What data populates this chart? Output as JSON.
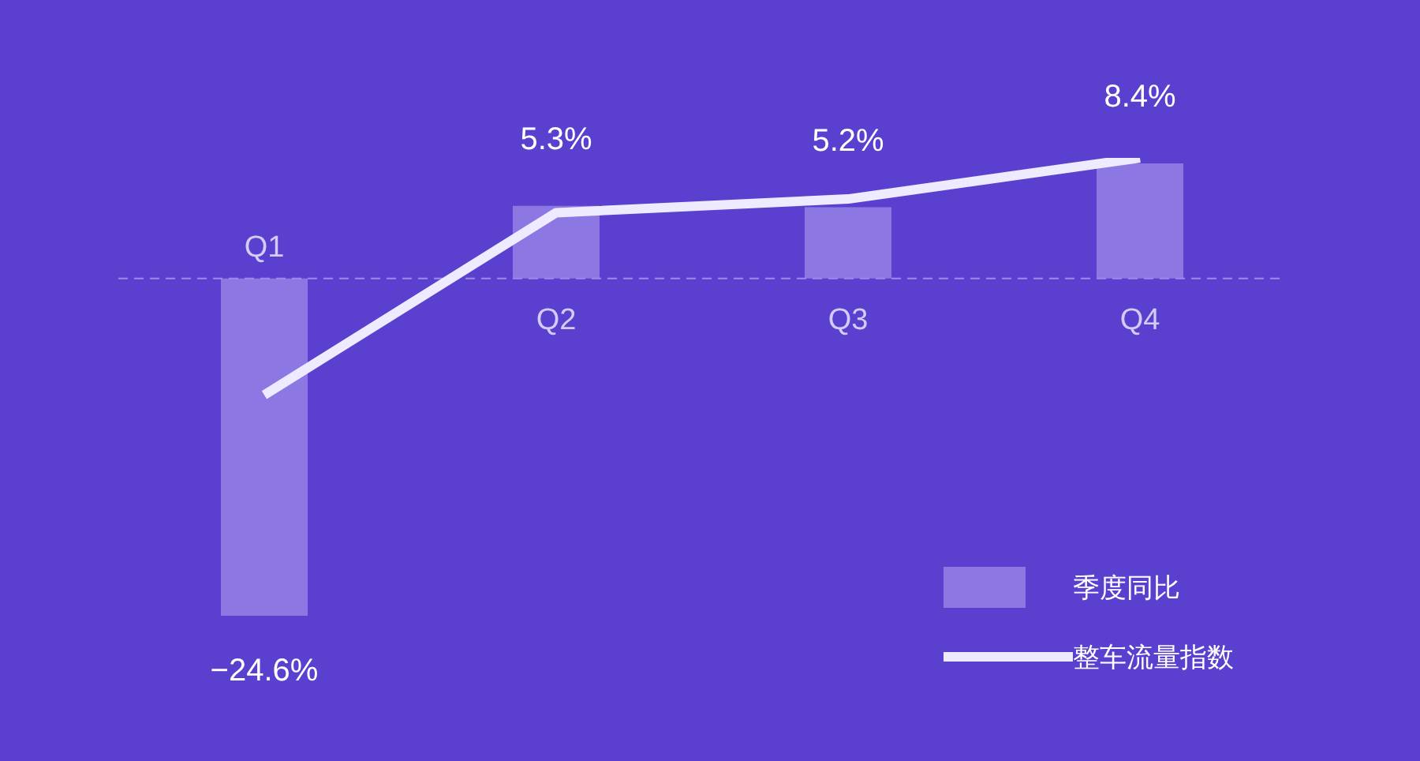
{
  "chart_data": {
    "type": "bar",
    "categories": [
      "Q1",
      "Q2",
      "Q3",
      "Q4"
    ],
    "series": [
      {
        "name": "季度同比",
        "color": "#8c77e3",
        "values": [
          -24.6,
          5.3,
          5.2,
          8.4
        ],
        "value_labels": [
          "−24.6%",
          "5.3%",
          "5.2%",
          "8.4%"
        ]
      },
      {
        "name": "整车流量指数",
        "type": "line",
        "color": "#eeeaff",
        "values": [
          -8.5,
          4.8,
          5.8,
          8.8
        ]
      }
    ],
    "legend": "bottom right",
    "tick_labels": "x",
    "marker": "none",
    "line_style": "solid",
    "ref_lines": [
      {
        "axis": "y",
        "value": 0,
        "color": "#9d8ae8",
        "line_style": "dashed"
      }
    ]
  }
}
